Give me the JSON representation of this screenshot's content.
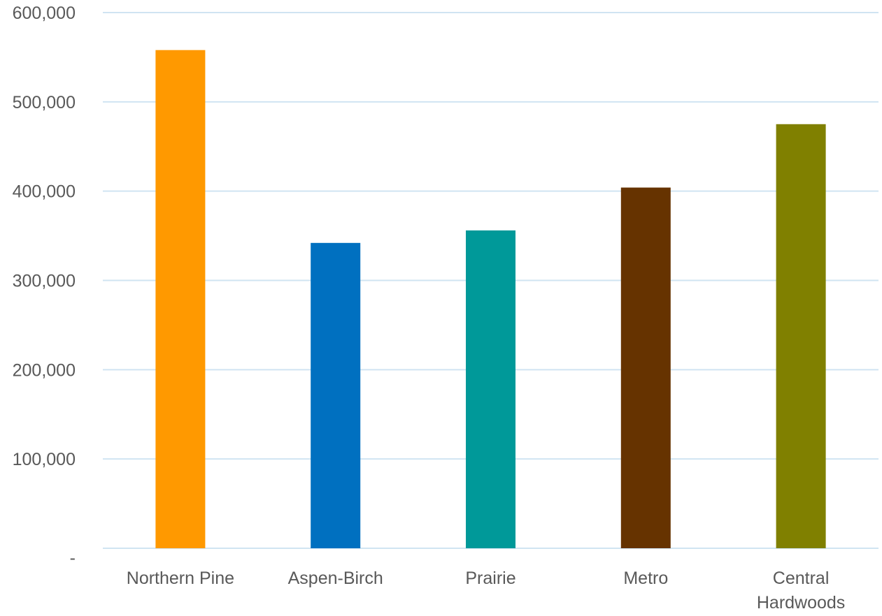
{
  "chart_data": {
    "type": "bar",
    "title": "",
    "xlabel": "",
    "ylabel": "",
    "categories": [
      "Northern Pine",
      "Aspen-Birch",
      "Prairie",
      "Metro",
      "Central Hardwoods"
    ],
    "values": [
      558000,
      342000,
      356000,
      404000,
      475000
    ],
    "colors": [
      "#FF9900",
      "#0070C0",
      "#009999",
      "#663300",
      "#808000"
    ],
    "ylim": [
      0,
      600000
    ],
    "y_ticks": [
      0,
      100000,
      200000,
      300000,
      400000,
      500000,
      600000
    ],
    "y_tick_labels": [
      "-",
      "100,000",
      "200,000",
      "300,000",
      "400,000",
      "500,000",
      "600,000"
    ],
    "grid": true,
    "gridline_color": "#D0E4F2",
    "axis_text_color": "#595959",
    "legend": "none"
  }
}
